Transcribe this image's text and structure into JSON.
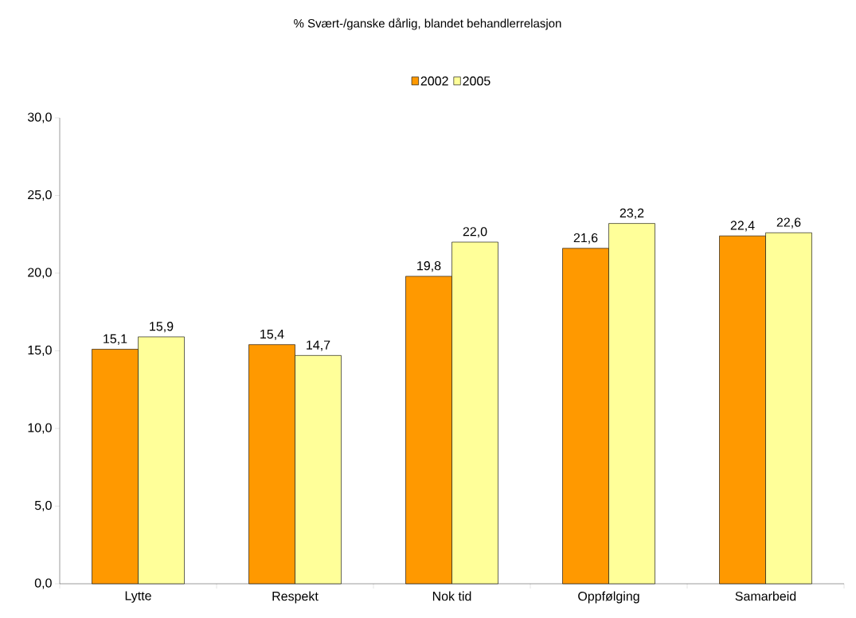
{
  "chart_data": {
    "type": "bar",
    "title": "% Svært-/ganske dårlig, blandet behandlerrelasjon",
    "categories": [
      "Lytte",
      "Respekt",
      "Nok tid",
      "Oppfølging",
      "Samarbeid"
    ],
    "series": [
      {
        "name": "2002",
        "color": "#ff9900",
        "values": [
          15.1,
          15.4,
          19.8,
          21.6,
          22.4
        ],
        "value_labels": [
          "15,1",
          "15,4",
          "19,8",
          "21,6",
          "22,4"
        ]
      },
      {
        "name": "2005",
        "color": "#ffff99",
        "values": [
          15.9,
          14.7,
          22.0,
          23.2,
          22.6
        ],
        "value_labels": [
          "15,9",
          "14,7",
          "22,0",
          "23,2",
          "22,6"
        ]
      }
    ],
    "ylim": [
      0,
      30
    ],
    "yticks": [
      {
        "value": 0,
        "label": "0,0"
      },
      {
        "value": 5,
        "label": "5,0"
      },
      {
        "value": 10,
        "label": "10,0"
      },
      {
        "value": 15,
        "label": "15,0"
      },
      {
        "value": 20,
        "label": "20,0"
      },
      {
        "value": 25,
        "label": "25,0"
      },
      {
        "value": 30,
        "label": "30,0"
      }
    ],
    "legend": "top",
    "grid": false
  }
}
